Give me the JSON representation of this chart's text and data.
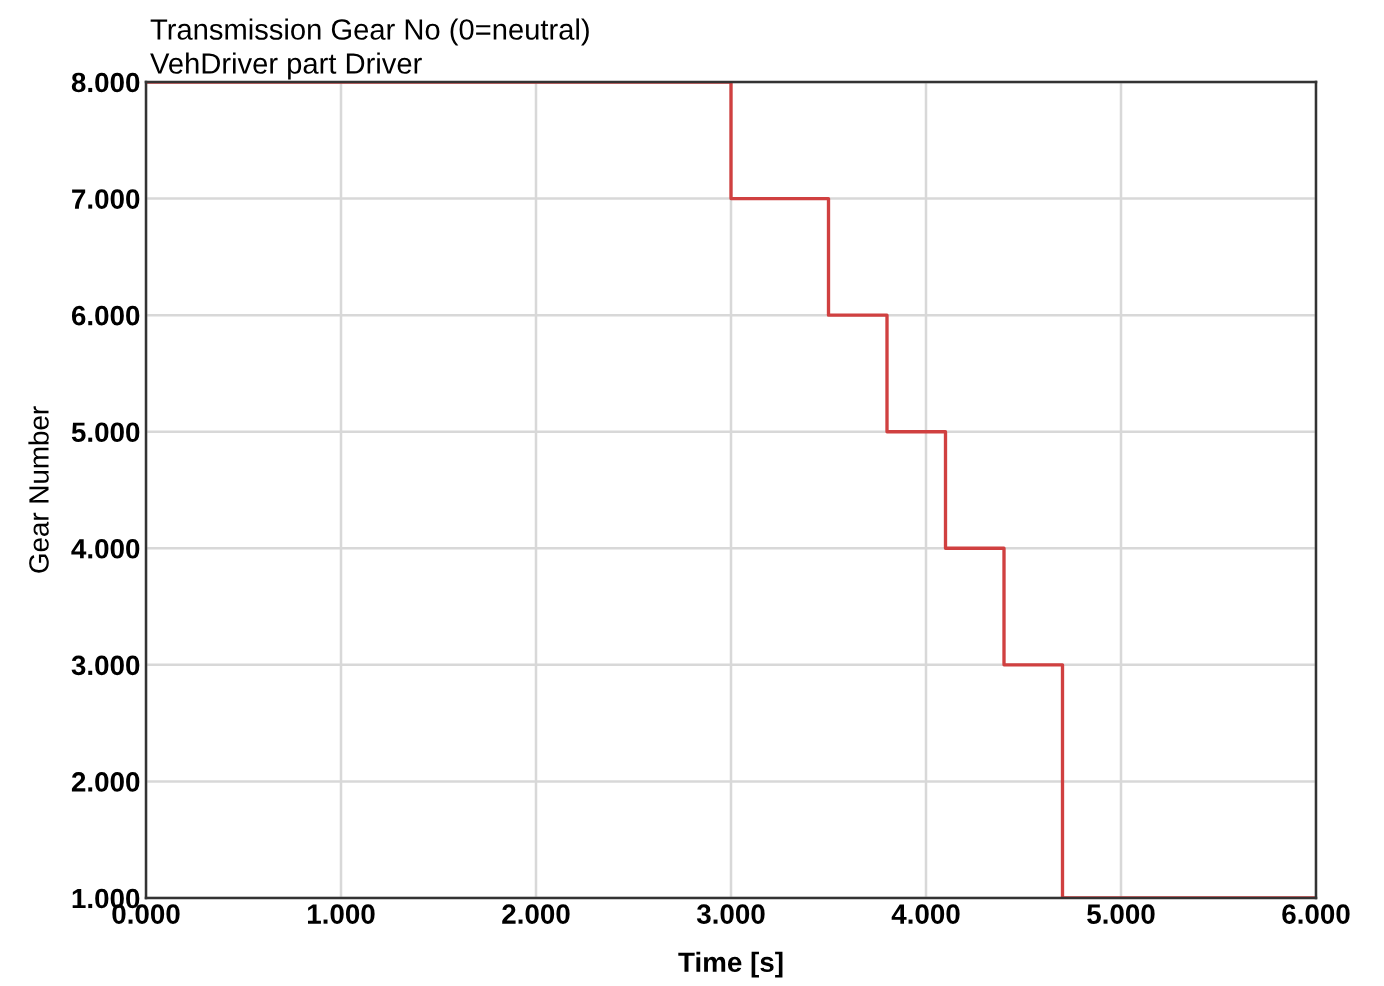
{
  "chart_data": {
    "type": "step",
    "title": "Transmission Gear No (0=neutral)",
    "subtitle": "VehDriver part Driver",
    "xlabel": "Time [s]",
    "ylabel": "Gear Number",
    "x": [
      0,
      3,
      3.5,
      3.8,
      4.1,
      4.4,
      4.7,
      6
    ],
    "series": [
      {
        "color": "#d04040",
        "values": [
          8,
          7,
          6,
          5,
          4,
          3,
          1,
          1
        ]
      }
    ],
    "xlim": [
      0,
      6
    ],
    "ylim": [
      1,
      8
    ],
    "xticks": [
      {
        "value": 0,
        "label": "0.000"
      },
      {
        "value": 1,
        "label": "1.000"
      },
      {
        "value": 2,
        "label": "2.000"
      },
      {
        "value": 3,
        "label": "3.000"
      },
      {
        "value": 4,
        "label": "4.000"
      },
      {
        "value": 5,
        "label": "5.000"
      },
      {
        "value": 6,
        "label": "6.000"
      }
    ],
    "yticks": [
      {
        "value": 1,
        "label": "1.000"
      },
      {
        "value": 2,
        "label": "2.000"
      },
      {
        "value": 3,
        "label": "3.000"
      },
      {
        "value": 4,
        "label": "4.000"
      },
      {
        "value": 5,
        "label": "5.000"
      },
      {
        "value": 6,
        "label": "6.000"
      },
      {
        "value": 7,
        "label": "7.000"
      },
      {
        "value": 8,
        "label": "8.000"
      }
    ],
    "grid": true,
    "legend": false
  }
}
